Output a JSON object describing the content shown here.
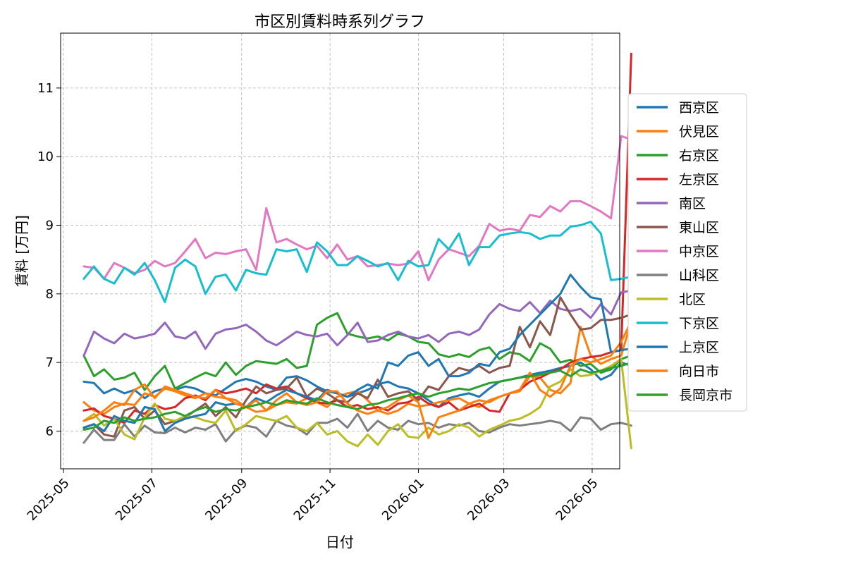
{
  "chart_data": {
    "type": "line",
    "title": "市区別賃料時系列グラフ",
    "xlabel": "日付",
    "ylabel": "賃料 [万円]",
    "xlim": [
      "2025-04-29",
      "2026-05-20"
    ],
    "ylim": [
      5.45,
      11.8
    ],
    "x_ticks": [
      "2025-05",
      "2025-07",
      "2025-09",
      "2025-11",
      "2026-01",
      "2026-03",
      "2026-05"
    ],
    "y_ticks": [
      6,
      7,
      8,
      9,
      10,
      11
    ],
    "grid": true,
    "legend_position": "right",
    "start_date": "2025-05-15",
    "step_days": 7,
    "series": [
      {
        "name": "西京区",
        "color": "#1f77b4",
        "values": [
          6.72,
          6.7,
          6.55,
          6.62,
          6.55,
          6.6,
          6.48,
          6.58,
          6.62,
          6.6,
          6.65,
          6.62,
          6.55,
          6.52,
          6.62,
          6.72,
          6.76,
          6.72,
          6.65,
          6.6,
          6.78,
          6.8,
          6.74,
          6.65,
          6.58,
          6.55,
          6.5,
          6.55,
          6.6,
          6.68,
          6.72,
          6.65,
          6.62,
          6.55,
          6.45,
          6.35,
          6.48,
          6.52,
          6.55,
          6.5,
          6.62,
          6.72,
          6.75,
          6.78,
          6.82,
          6.85,
          6.88,
          6.92,
          6.95,
          7.0,
          6.9,
          6.75,
          6.82,
          7.0,
          6.95
        ]
      },
      {
        "name": "伏見区",
        "color": "#ff7f0e",
        "values": [
          6.42,
          6.3,
          6.25,
          6.35,
          6.4,
          6.38,
          6.55,
          6.5,
          6.62,
          6.58,
          6.52,
          6.48,
          6.55,
          6.5,
          6.48,
          6.45,
          6.35,
          6.28,
          6.3,
          6.38,
          6.42,
          6.4,
          6.48,
          6.42,
          6.35,
          6.5,
          6.55,
          6.58,
          6.45,
          6.3,
          6.25,
          6.3,
          6.4,
          6.36,
          6.38,
          6.42,
          6.45,
          6.48,
          6.4,
          6.35,
          6.45,
          6.5,
          6.55,
          6.58,
          6.8,
          6.78,
          6.6,
          6.55,
          6.7,
          7.52,
          7.1,
          6.98,
          7.05,
          7.1,
          7.6
        ]
      },
      {
        "name": "右京区",
        "color": "#2ca02c",
        "values": [
          7.1,
          6.8,
          6.9,
          6.75,
          6.78,
          6.85,
          6.6,
          6.8,
          6.95,
          6.62,
          6.7,
          6.78,
          6.85,
          6.8,
          7.0,
          6.82,
          6.95,
          7.02,
          7.0,
          6.98,
          7.05,
          6.92,
          6.95,
          7.55,
          7.65,
          7.72,
          7.42,
          7.38,
          7.35,
          7.38,
          7.32,
          7.42,
          7.38,
          7.3,
          7.28,
          7.12,
          7.08,
          7.12,
          7.08,
          7.18,
          7.22,
          7.05,
          7.15,
          7.12,
          7.02,
          7.28,
          7.2,
          7.0,
          7.04,
          6.95,
          6.98,
          6.85,
          6.9,
          7.05,
          7.1
        ]
      },
      {
        "name": "左京区",
        "color": "#d62728",
        "values": [
          6.3,
          6.33,
          6.22,
          6.18,
          6.12,
          6.3,
          6.25,
          6.38,
          6.32,
          6.35,
          6.48,
          6.52,
          6.45,
          6.6,
          6.55,
          6.58,
          6.62,
          6.55,
          6.68,
          6.62,
          6.65,
          6.55,
          6.48,
          6.42,
          6.4,
          6.45,
          6.35,
          6.38,
          6.32,
          6.35,
          6.3,
          6.4,
          6.42,
          6.5,
          6.4,
          6.35,
          6.42,
          6.3,
          6.35,
          6.4,
          6.3,
          6.28,
          6.55,
          6.6,
          6.72,
          6.78,
          6.85,
          6.9,
          7.0,
          7.05,
          7.08,
          7.1,
          7.15,
          7.18,
          11.5
        ]
      },
      {
        "name": "南区",
        "color": "#9467bd",
        "values": [
          7.1,
          7.45,
          7.35,
          7.28,
          7.42,
          7.35,
          7.38,
          7.42,
          7.58,
          7.38,
          7.35,
          7.45,
          7.2,
          7.42,
          7.48,
          7.5,
          7.55,
          7.45,
          7.32,
          7.25,
          7.35,
          7.45,
          7.4,
          7.38,
          7.42,
          7.25,
          7.4,
          7.58,
          7.3,
          7.32,
          7.4,
          7.45,
          7.38,
          7.35,
          7.4,
          7.3,
          7.42,
          7.45,
          7.4,
          7.48,
          7.7,
          7.85,
          7.78,
          7.75,
          7.88,
          7.72,
          7.9,
          7.78,
          7.75,
          7.78,
          7.65,
          7.85,
          7.7,
          8.02,
          8.05
        ]
      },
      {
        "name": "東山区",
        "color": "#8c564b",
        "values": [
          6.05,
          6.1,
          5.95,
          5.92,
          6.3,
          6.35,
          6.18,
          6.3,
          6.1,
          6.15,
          6.2,
          6.3,
          6.4,
          6.22,
          6.35,
          6.2,
          6.45,
          6.65,
          6.55,
          6.6,
          6.62,
          6.78,
          6.5,
          6.62,
          6.55,
          6.45,
          6.42,
          6.55,
          6.48,
          6.75,
          6.5,
          6.55,
          6.58,
          6.45,
          6.65,
          6.6,
          6.8,
          6.92,
          6.88,
          6.95,
          6.85,
          6.92,
          6.95,
          7.52,
          7.22,
          7.6,
          7.4,
          7.95,
          7.7,
          7.48,
          7.5,
          7.62,
          7.62,
          7.65,
          7.7
        ]
      },
      {
        "name": "中京区",
        "color": "#e377c2",
        "values": [
          8.4,
          8.38,
          8.22,
          8.45,
          8.38,
          8.3,
          8.35,
          8.48,
          8.4,
          8.45,
          8.62,
          8.8,
          8.52,
          8.6,
          8.58,
          8.62,
          8.65,
          8.35,
          9.25,
          8.75,
          8.8,
          8.72,
          8.65,
          8.7,
          8.52,
          8.72,
          8.5,
          8.55,
          8.4,
          8.42,
          8.44,
          8.42,
          8.44,
          8.62,
          8.2,
          8.5,
          8.65,
          8.6,
          8.55,
          8.7,
          9.02,
          8.92,
          8.95,
          8.92,
          9.15,
          9.12,
          9.28,
          9.2,
          9.35,
          9.35,
          9.28,
          9.2,
          9.1,
          10.3,
          10.25
        ]
      },
      {
        "name": "山科区",
        "color": "#7f7f7f",
        "values": [
          5.83,
          6.02,
          5.87,
          5.87,
          6.1,
          5.92,
          6.08,
          5.98,
          5.97,
          6.05,
          5.98,
          6.05,
          6.02,
          6.1,
          5.85,
          6.02,
          6.08,
          6.05,
          5.92,
          6.15,
          6.08,
          6.05,
          5.95,
          6.12,
          6.12,
          6.18,
          6.05,
          6.25,
          6.0,
          6.15,
          6.05,
          6.02,
          6.15,
          6.1,
          6.12,
          6.05,
          6.1,
          6.08,
          6.12,
          6.0,
          5.98,
          6.05,
          6.1,
          6.08,
          6.1,
          6.12,
          6.15,
          6.12,
          6.0,
          6.2,
          6.18,
          6.02,
          6.1,
          6.12,
          6.08
        ]
      },
      {
        "name": "北区",
        "color": "#bcbd22",
        "values": [
          6.15,
          6.25,
          6.08,
          6.18,
          5.95,
          5.88,
          6.2,
          6.4,
          6.18,
          6.15,
          6.22,
          6.2,
          6.15,
          6.12,
          6.3,
          6.0,
          6.1,
          6.22,
          6.18,
          6.15,
          6.22,
          6.05,
          6.0,
          6.12,
          5.95,
          6.0,
          5.85,
          5.78,
          5.95,
          5.8,
          6.0,
          6.1,
          5.92,
          5.9,
          6.05,
          5.95,
          6.0,
          6.1,
          6.05,
          5.92,
          6.02,
          6.08,
          6.15,
          6.18,
          6.25,
          6.35,
          6.65,
          6.72,
          6.9,
          6.8,
          6.82,
          6.88,
          6.95,
          7.05,
          5.75
        ]
      },
      {
        "name": "下京区",
        "color": "#17becf",
        "values": [
          8.22,
          8.4,
          8.22,
          8.15,
          8.38,
          8.28,
          8.45,
          8.2,
          7.88,
          8.38,
          8.5,
          8.4,
          8.0,
          8.25,
          8.28,
          8.05,
          8.35,
          8.3,
          8.28,
          8.65,
          8.62,
          8.65,
          8.32,
          8.75,
          8.62,
          8.42,
          8.42,
          8.55,
          8.48,
          8.4,
          8.45,
          8.2,
          8.48,
          8.4,
          8.42,
          8.8,
          8.65,
          8.88,
          8.42,
          8.68,
          8.68,
          8.85,
          8.88,
          8.9,
          8.88,
          8.8,
          8.85,
          8.85,
          8.98,
          9.0,
          9.05,
          8.88,
          8.2,
          8.22,
          8.25
        ]
      },
      {
        "name": "上京区",
        "color": "#1f77b4",
        "values": [
          6.05,
          6.1,
          6.0,
          6.22,
          6.15,
          6.12,
          6.35,
          6.32,
          6.0,
          6.12,
          6.18,
          6.22,
          6.25,
          6.42,
          6.38,
          6.4,
          6.35,
          6.48,
          6.42,
          6.52,
          6.6,
          6.55,
          6.5,
          6.45,
          6.6,
          6.55,
          6.5,
          6.6,
          6.68,
          6.62,
          7.0,
          6.95,
          7.1,
          7.15,
          6.95,
          7.05,
          6.8,
          6.8,
          6.85,
          6.98,
          6.95,
          7.15,
          7.2,
          7.4,
          7.55,
          7.7,
          7.85,
          8.0,
          8.28,
          8.1,
          7.95,
          7.92,
          7.15,
          7.18,
          7.2
        ]
      },
      {
        "name": "向日市",
        "color": "#ff7f0e",
        "values": [
          6.15,
          6.2,
          6.3,
          6.42,
          6.38,
          6.6,
          6.68,
          6.48,
          6.65,
          6.6,
          6.55,
          6.5,
          6.48,
          6.6,
          6.48,
          6.4,
          6.35,
          6.45,
          6.3,
          6.45,
          6.55,
          6.42,
          6.38,
          6.42,
          6.58,
          6.58,
          6.4,
          6.3,
          6.25,
          6.3,
          6.35,
          6.45,
          6.52,
          6.42,
          5.9,
          6.2,
          6.25,
          6.3,
          6.4,
          6.45,
          6.42,
          6.5,
          6.55,
          6.6,
          6.85,
          6.6,
          6.5,
          6.62,
          6.95,
          7.05,
          7.0,
          7.05,
          7.1,
          7.3,
          7.6
        ]
      },
      {
        "name": "長岡京市",
        "color": "#2ca02c",
        "values": [
          6.02,
          6.05,
          6.15,
          6.12,
          6.2,
          6.15,
          6.18,
          6.2,
          6.25,
          6.28,
          6.22,
          6.3,
          6.35,
          6.28,
          6.32,
          6.3,
          6.35,
          6.38,
          6.42,
          6.38,
          6.45,
          6.42,
          6.4,
          6.48,
          6.42,
          6.38,
          6.35,
          6.32,
          6.38,
          6.4,
          6.45,
          6.48,
          6.52,
          6.55,
          6.5,
          6.55,
          6.58,
          6.62,
          6.6,
          6.65,
          6.7,
          6.72,
          6.75,
          6.78,
          6.8,
          6.82,
          6.85,
          6.88,
          6.8,
          6.9,
          6.85,
          6.88,
          6.92,
          6.95,
          7.0
        ]
      }
    ]
  }
}
